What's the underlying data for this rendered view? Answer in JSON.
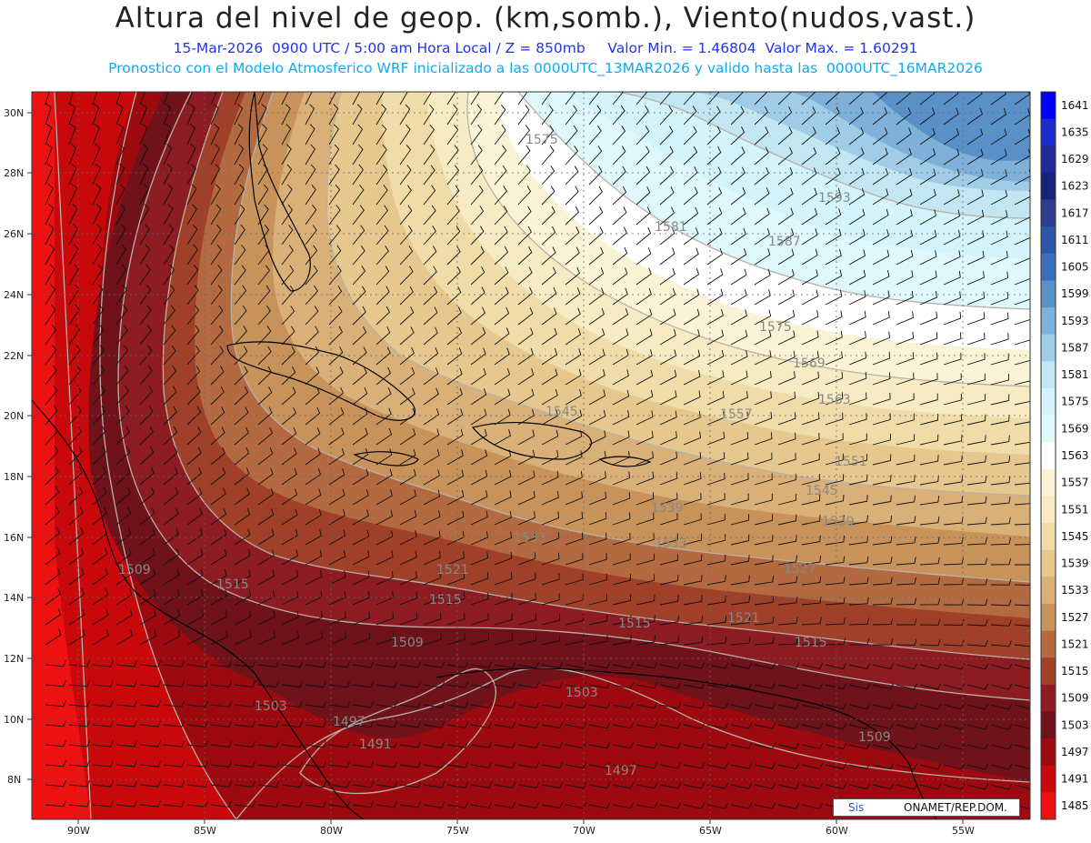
{
  "header": {
    "title": "Altura del nivel de geop. (km,somb.), Viento(nudos,vast.)",
    "line1": "15-Mar-2026  0900 UTC / 5:00 am Hora Local / Z = 850mb     Valor Min. = 1.46804  Valor Max. = 1.60291",
    "line2": "Pronostico con el Modelo Atmosferico WRF inicializado a las 0000UTC_13MAR2026 y valido hasta las  0000UTC_16MAR2026"
  },
  "axes": {
    "lat_labels": [
      "30N",
      "28N",
      "26N",
      "24N",
      "22N",
      "20N",
      "18N",
      "16N",
      "14N",
      "12N",
      "10N",
      "8N"
    ],
    "lon_labels": [
      "90W",
      "85W",
      "80W",
      "75W",
      "70W",
      "65W",
      "60W",
      "55W"
    ]
  },
  "colorbar": {
    "labels": [
      "1641",
      "1635",
      "1629",
      "1623",
      "1617",
      "1611",
      "1605",
      "1599",
      "1593",
      "1587",
      "1581",
      "1575",
      "1569",
      "1563",
      "1557",
      "1551",
      "1545",
      "1539",
      "1533",
      "1527",
      "1521",
      "1515",
      "1509",
      "1503",
      "1497",
      "1491",
      "1485"
    ],
    "colors": [
      "#0000ff",
      "#1a2ccc",
      "#1e2a99",
      "#16237a",
      "#2c3e8c",
      "#2e55a8",
      "#3a6fb8",
      "#5a90c8",
      "#7eb0da",
      "#a0cce8",
      "#c2e6f2",
      "#d2f4fa",
      "#dff8fc",
      "#ffffff",
      "#fbf3d6",
      "#f7ebc3",
      "#f0dca8",
      "#e6c88e",
      "#d9b077",
      "#c8935a",
      "#b46a40",
      "#a04029",
      "#8c1c22",
      "#70121a",
      "#9c0a10",
      "#c8080a",
      "#ee1111"
    ]
  },
  "contour_labels": [
    "1575",
    "1581",
    "1587",
    "1593",
    "1575",
    "1569",
    "1563",
    "1557",
    "1551",
    "1545",
    "1545",
    "1539",
    "1539",
    "1533",
    "1533",
    "1527",
    "1521",
    "1521",
    "1515",
    "1515",
    "1515",
    "1515",
    "1509",
    "1509",
    "1509",
    "1503",
    "1503",
    "1497",
    "1497",
    "1491"
  ],
  "credit": {
    "sis": "Sis",
    "org": "ONAMET/REP.DOM."
  }
}
